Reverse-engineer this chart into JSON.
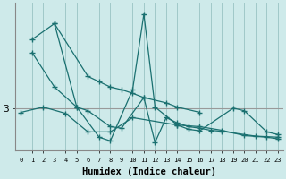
{
  "xlabel": "Humidex (Indice chaleur)",
  "x_ticks": [
    0,
    1,
    2,
    3,
    4,
    5,
    6,
    7,
    8,
    9,
    10,
    11,
    12,
    13,
    14,
    15,
    16,
    17,
    18,
    19,
    20,
    21,
    22,
    23
  ],
  "y_ref": 3,
  "background_color": "#ceeaea",
  "grid_color": "#a0c8c8",
  "line_color": "#1a7070",
  "hline_color": "#999999",
  "xlim": [
    -0.5,
    23.5
  ],
  "ylim_min": 2.2,
  "ylim_max": 5.0,
  "curves": [
    {
      "x": [
        1,
        3,
        6,
        7,
        8,
        9,
        10,
        11,
        13,
        14,
        16
      ],
      "y": [
        4.3,
        4.6,
        3.6,
        3.5,
        3.4,
        3.35,
        3.28,
        3.2,
        3.1,
        3.02,
        2.92
      ]
    },
    {
      "x": [
        1,
        3,
        5,
        6,
        8,
        9,
        11,
        12,
        13,
        14,
        15,
        16,
        17,
        18,
        21,
        23
      ],
      "y": [
        4.05,
        3.4,
        3.02,
        2.95,
        2.65,
        2.62,
        3.2,
        2.35,
        2.82,
        2.72,
        2.65,
        2.62,
        2.58,
        2.56,
        2.47,
        2.45
      ]
    },
    {
      "x": [
        3,
        5,
        7,
        8,
        10,
        11,
        12,
        14,
        15,
        16,
        19,
        20,
        22,
        23
      ],
      "y": [
        4.6,
        3.02,
        2.45,
        2.38,
        3.35,
        4.78,
        3.02,
        2.68,
        2.6,
        2.57,
        3.0,
        2.95,
        2.55,
        2.5
      ]
    },
    {
      "x": [
        0,
        2,
        4,
        6,
        8,
        10,
        14,
        16,
        18,
        20,
        22,
        23
      ],
      "y": [
        2.92,
        3.02,
        2.9,
        2.55,
        2.55,
        2.82,
        2.68,
        2.65,
        2.58,
        2.48,
        2.45,
        2.42
      ]
    }
  ]
}
